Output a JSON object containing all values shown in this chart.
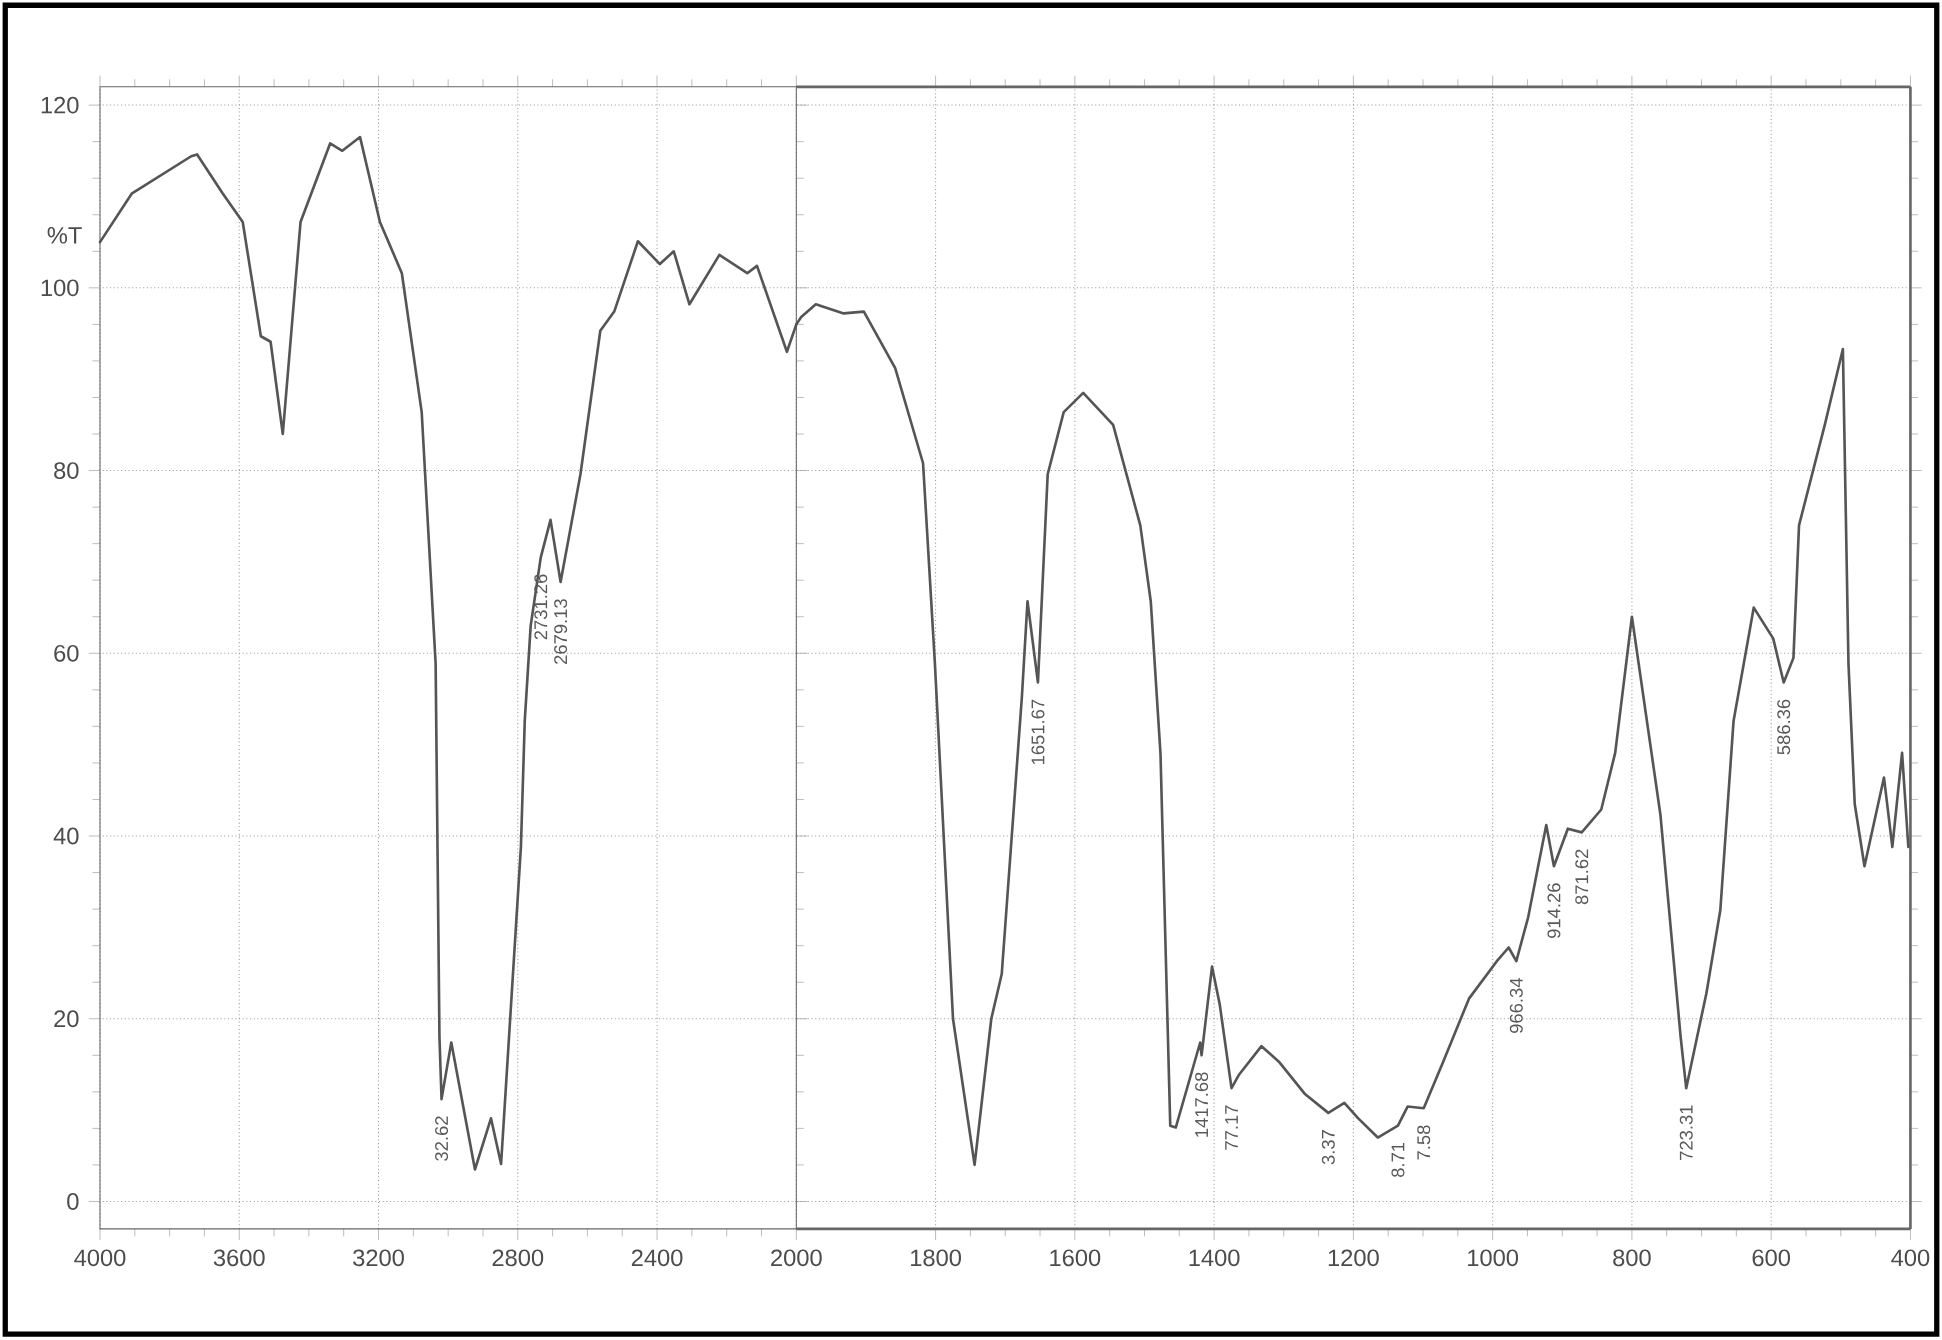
{
  "chart_data": [
    {
      "type": "line",
      "ylabel": "%T",
      "x": [
        4000,
        3909,
        3738,
        3721,
        3647,
        3590,
        3538,
        3510,
        3475,
        3424,
        3339,
        3304,
        3253,
        3196,
        3133,
        3076,
        3036,
        3025,
        3019,
        2991,
        2923,
        2877,
        2848,
        2791,
        2780,
        2763,
        2734,
        2706,
        2677,
        2620,
        2563,
        2523,
        2455,
        2392,
        2352,
        2307,
        2221,
        2141,
        2113,
        2027,
        2000
      ],
      "series": [
        {
          "color": "#555555",
          "values": [
            105,
            110.3,
            114.4,
            114.6,
            110.3,
            107.2,
            94.7,
            94.1,
            84,
            107.2,
            115.8,
            115,
            116.5,
            107.2,
            101.6,
            86.4,
            58.9,
            18,
            11.2,
            17.4,
            3.5,
            9.1,
            4.1,
            38.8,
            52.6,
            63,
            70.5,
            74.6,
            67.8,
            79.6,
            95.3,
            97.4,
            105.1,
            102.6,
            104,
            98.2,
            103.6,
            101.6,
            102.4,
            93,
            96
          ]
        }
      ],
      "xlim": [
        4000,
        2000
      ],
      "ylim": [
        -3,
        122
      ],
      "xticks": [
        4000,
        3600,
        3200,
        2800,
        2400,
        2000
      ],
      "yticks": [
        0,
        20,
        40,
        60,
        80,
        100,
        120
      ],
      "grid": true,
      "marker": "none",
      "line_style": "solid",
      "annotations": [
        {
          "text": "32.62",
          "x": 3019,
          "y": 11.2
        },
        {
          "text": "2731.26",
          "x": 2734,
          "y": 70.5
        },
        {
          "text": "2679.13",
          "x": 2677,
          "y": 67.8
        }
      ]
    },
    {
      "type": "line",
      "x": [
        2000,
        1993,
        1972,
        1932,
        1903,
        1858,
        1818,
        1801,
        1775,
        1744,
        1720,
        1705,
        1676,
        1668,
        1653,
        1639,
        1616,
        1588,
        1545,
        1506,
        1491,
        1477,
        1463,
        1455,
        1420,
        1418,
        1403,
        1392,
        1375,
        1364,
        1332,
        1307,
        1270,
        1236,
        1213,
        1193,
        1165,
        1136,
        1122,
        1099,
        1071,
        1034,
        994,
        977,
        966,
        949,
        923,
        912,
        892,
        872,
        844,
        824,
        800,
        759,
        730,
        722,
        693,
        673,
        654,
        625,
        597,
        582,
        568,
        560,
        523,
        497,
        489,
        480,
        466,
        438,
        426,
        412,
        403
      ],
      "series": [
        {
          "color": "#555555",
          "values": [
            96,
            96.8,
            98.2,
            97.2,
            97.4,
            91.2,
            80.8,
            58.9,
            20,
            4,
            20,
            24.9,
            55.3,
            65.7,
            56.8,
            79.6,
            86.4,
            88.5,
            85,
            74,
            65.7,
            49,
            8.3,
            8.1,
            17.4,
            16,
            25.7,
            21.6,
            12.4,
            13.9,
            17,
            15.3,
            11.8,
            9.7,
            10.8,
            9.1,
            7,
            8.3,
            10.4,
            10.2,
            15.3,
            22.2,
            26.3,
            27.8,
            26.3,
            31.1,
            41.2,
            36.7,
            40.8,
            40.4,
            42.9,
            49.1,
            64,
            42.3,
            18,
            12.4,
            22.8,
            31.9,
            52.6,
            65,
            61.6,
            56.8,
            59.5,
            74,
            85,
            93.3,
            58.9,
            43.5,
            36.7,
            46.4,
            38.8,
            49.1,
            38.8
          ]
        }
      ],
      "xlim": [
        2000,
        400
      ],
      "ylim": [
        -3,
        122
      ],
      "xticks": [
        1800,
        1600,
        1400,
        1200,
        1000,
        800,
        600,
        400
      ],
      "yticks": [
        0,
        20,
        40,
        60,
        80,
        100,
        120
      ],
      "tick_labels": "x",
      "grid": true,
      "marker": "none",
      "line_style": "solid",
      "annotations": [
        {
          "text": "1651.67",
          "x": 1653,
          "y": 56.8
        },
        {
          "text": "1417.68",
          "x": 1418,
          "y": 16
        },
        {
          "text": "77.17",
          "x": 1375,
          "y": 12.4
        },
        {
          "text": "3.37",
          "x": 1236,
          "y": 9.7
        },
        {
          "text": "8.71",
          "x": 1136,
          "y": 8.3
        },
        {
          "text": "7.58",
          "x": 1099,
          "y": 10.2
        },
        {
          "text": "966.34",
          "x": 966,
          "y": 26.3
        },
        {
          "text": "914.26",
          "x": 912,
          "y": 36.7
        },
        {
          "text": "871.62",
          "x": 872,
          "y": 40.4
        },
        {
          "text": "723.31",
          "x": 722,
          "y": 12.4
        },
        {
          "text": "586.36",
          "x": 582,
          "y": 56.8
        }
      ]
    }
  ]
}
